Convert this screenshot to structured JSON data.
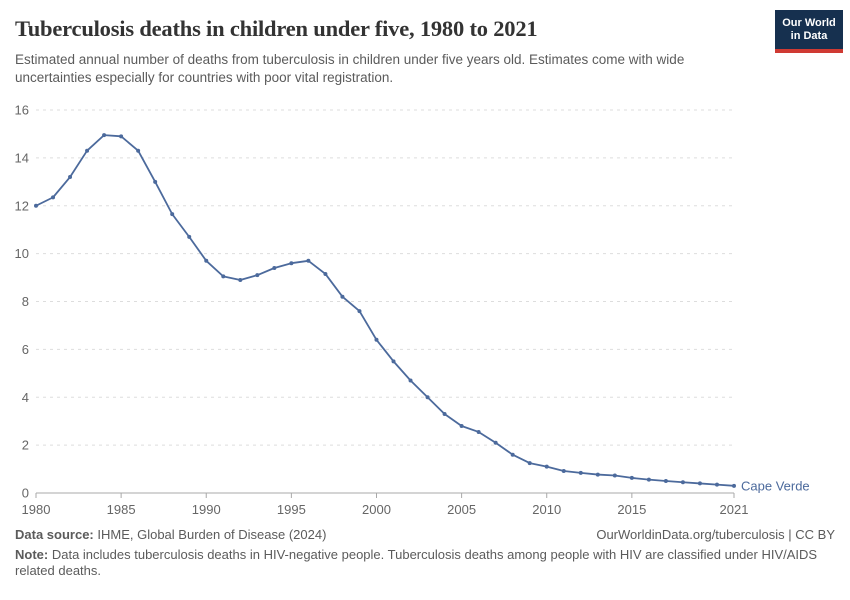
{
  "header": {
    "title": "Tuberculosis deaths in children under five, 1980 to 2021",
    "subtitle": "Estimated annual number of deaths from tuberculosis in children under five years old. Estimates come with wide uncertainties especially for countries with poor vital registration.",
    "logo": {
      "line1": "Our World",
      "line2": "in Data",
      "bg_color": "#16304f",
      "accent_color": "#cf3a33"
    }
  },
  "chart_data": {
    "type": "line",
    "title": "Tuberculosis deaths in children under five, 1980 to 2021",
    "xlabel": "",
    "ylabel": "",
    "xlim": [
      1980,
      2021
    ],
    "ylim": [
      0,
      16
    ],
    "x_ticks": [
      1980,
      1985,
      1990,
      1995,
      2000,
      2005,
      2010,
      2015,
      2021
    ],
    "y_ticks": [
      0,
      2,
      4,
      6,
      8,
      10,
      12,
      14,
      16
    ],
    "grid": "horizontal-dashed",
    "gridline_color": "#dddddd",
    "axis_color": "#a8a8a8",
    "tick_label_color": "#666666",
    "legend_position": "end-of-line",
    "series": [
      {
        "name": "Cape Verde",
        "color": "#4c6a9c",
        "x": [
          1980,
          1981,
          1982,
          1983,
          1984,
          1985,
          1986,
          1987,
          1988,
          1989,
          1990,
          1991,
          1992,
          1993,
          1994,
          1995,
          1996,
          1997,
          1998,
          1999,
          2000,
          2001,
          2002,
          2003,
          2004,
          2005,
          2006,
          2007,
          2008,
          2009,
          2010,
          2011,
          2012,
          2013,
          2014,
          2015,
          2016,
          2017,
          2018,
          2019,
          2020,
          2021
        ],
        "values": [
          12.0,
          12.35,
          13.2,
          14.3,
          14.95,
          14.9,
          14.3,
          13.0,
          11.65,
          10.7,
          9.7,
          9.05,
          8.9,
          9.1,
          9.4,
          9.6,
          9.7,
          9.15,
          8.2,
          7.6,
          6.4,
          5.5,
          4.7,
          4.0,
          3.3,
          2.8,
          2.55,
          2.1,
          1.6,
          1.25,
          1.1,
          0.92,
          0.84,
          0.77,
          0.73,
          0.63,
          0.56,
          0.5,
          0.45,
          0.4,
          0.35,
          0.3
        ]
      }
    ]
  },
  "footer": {
    "data_source_label": "Data source:",
    "data_source": "IHME, Global Burden of Disease (2024)",
    "attribution": "OurWorldinData.org/tuberculosis | CC BY",
    "note_label": "Note:",
    "note": "Data includes tuberculosis deaths in HIV-negative people. Tuberculosis deaths among people with HIV are classified under HIV/AIDS related deaths."
  }
}
